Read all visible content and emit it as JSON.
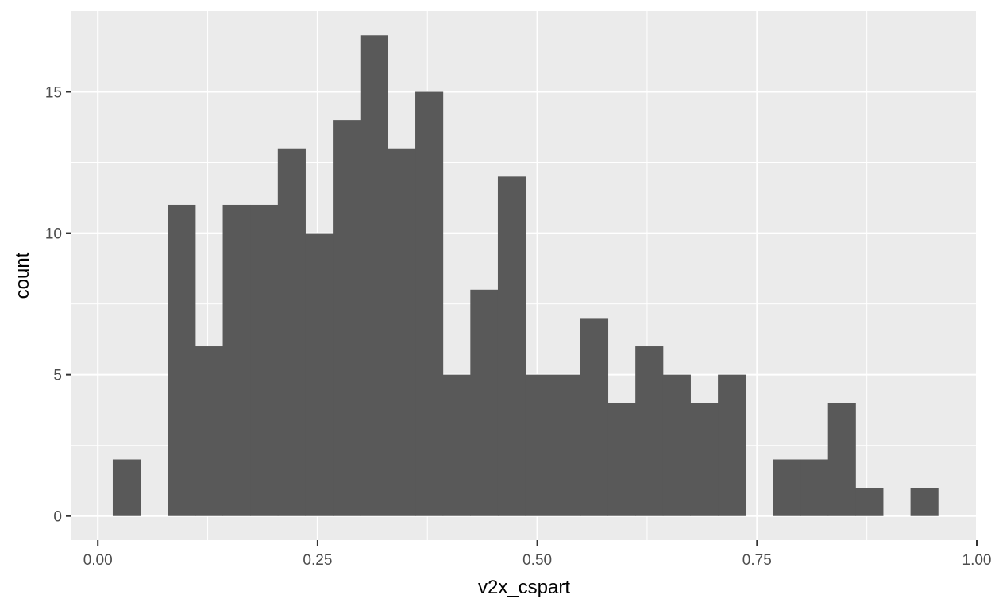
{
  "chart_data": {
    "type": "bar",
    "xlabel": "v2x_cspart",
    "ylabel": "count",
    "xlim": [
      -0.03,
      1.0
    ],
    "ylim": [
      -0.85,
      17.85
    ],
    "x_ticks": [
      {
        "value": 0.0,
        "label": "0.00"
      },
      {
        "value": 0.25,
        "label": "0.25"
      },
      {
        "value": 0.5,
        "label": "0.50"
      },
      {
        "value": 0.75,
        "label": "0.75"
      },
      {
        "value": 1.0,
        "label": "1.00"
      }
    ],
    "y_ticks": [
      {
        "value": 0,
        "label": "0"
      },
      {
        "value": 5,
        "label": "5"
      },
      {
        "value": 10,
        "label": "10"
      },
      {
        "value": 15,
        "label": "15"
      }
    ],
    "grid": true,
    "bin_width": 0.0313,
    "bin_centers": [
      0.0326,
      0.0639,
      0.0952,
      0.1265,
      0.1578,
      0.1891,
      0.2204,
      0.2517,
      0.283,
      0.3143,
      0.3456,
      0.3769,
      0.4082,
      0.4395,
      0.4708,
      0.5021,
      0.5334,
      0.5647,
      0.596,
      0.6273,
      0.6586,
      0.6899,
      0.7212,
      0.7525,
      0.7838,
      0.8151,
      0.8464,
      0.8777,
      0.909,
      0.9403
    ],
    "counts": [
      2,
      0,
      11,
      6,
      11,
      11,
      13,
      10,
      14,
      17,
      13,
      15,
      5,
      8,
      12,
      5,
      5,
      7,
      4,
      6,
      5,
      4,
      5,
      0,
      2,
      2,
      4,
      1,
      0,
      1
    ],
    "bar_color": "#595959",
    "panel_color": "#ebebeb",
    "grid_color": "#ffffff"
  }
}
